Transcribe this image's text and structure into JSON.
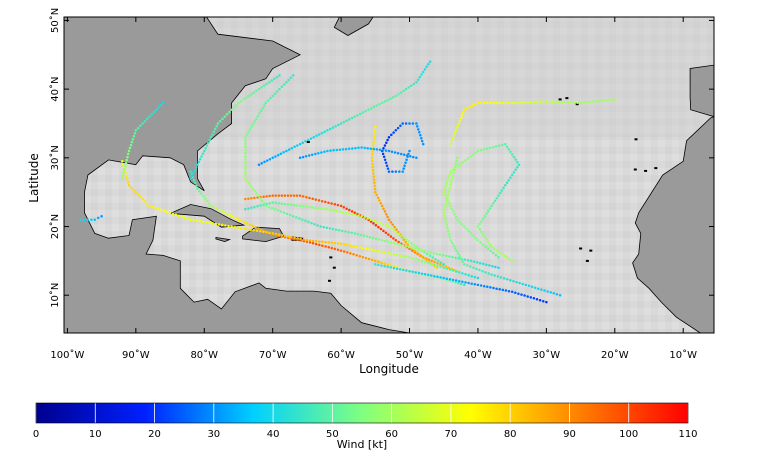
{
  "map": {
    "xlabel": "Longitude",
    "ylabel": "Latitude",
    "lon_ticks": [
      {
        "v": -100,
        "label": "100˚W"
      },
      {
        "v": -90,
        "label": "90˚W"
      },
      {
        "v": -80,
        "label": "80˚W"
      },
      {
        "v": -70,
        "label": "70˚W"
      },
      {
        "v": -60,
        "label": "60˚W"
      },
      {
        "v": -50,
        "label": "50˚W"
      },
      {
        "v": -40,
        "label": "40˚W"
      },
      {
        "v": -30,
        "label": "30˚W"
      },
      {
        "v": -20,
        "label": "20˚W"
      },
      {
        "v": -10,
        "label": "10˚W"
      }
    ],
    "lat_ticks": [
      {
        "v": 10,
        "label": "10˚N"
      },
      {
        "v": 20,
        "label": "20˚N"
      },
      {
        "v": 30,
        "label": "30˚N"
      },
      {
        "v": 40,
        "label": "40˚N"
      },
      {
        "v": 50,
        "label": "50˚N"
      }
    ],
    "lon_range": [
      -100.5,
      -5.5
    ],
    "lat_range": [
      4.5,
      50.5
    ],
    "background": "grayscale sea surface field",
    "land_color": "#9a9a9a",
    "coastline_color": "#000000"
  },
  "colorbar": {
    "label": "Wind [kt]",
    "range": [
      0,
      110
    ],
    "ticks": [
      {
        "v": 0,
        "label": "0"
      },
      {
        "v": 10,
        "label": "10"
      },
      {
        "v": 20,
        "label": "20"
      },
      {
        "v": 30,
        "label": "30"
      },
      {
        "v": 40,
        "label": "40"
      },
      {
        "v": 50,
        "label": "50"
      },
      {
        "v": 60,
        "label": "60"
      },
      {
        "v": 70,
        "label": "70"
      },
      {
        "v": 80,
        "label": "80"
      },
      {
        "v": 90,
        "label": "90"
      },
      {
        "v": 100,
        "label": "100"
      },
      {
        "v": 110,
        "label": "110"
      }
    ],
    "colormap": [
      "#00008f",
      "#0020ff",
      "#00d0ff",
      "#80ff80",
      "#ffff00",
      "#ff8000",
      "#ff0000"
    ]
  },
  "chart_data": {
    "type": "scatter",
    "xlabel": "Longitude",
    "ylabel": "Latitude",
    "xlim": [
      -100.5,
      -5.5
    ],
    "ylim": [
      4.5,
      50.5
    ],
    "color_variable": "Wind [kt]",
    "tracks": [
      {
        "points": [
          [
            -42,
            11.5
          ],
          [
            -45,
            12.4
          ],
          [
            -50,
            13.5
          ],
          [
            -55,
            15
          ],
          [
            -60,
            16.5
          ],
          [
            -65,
            17.8
          ],
          [
            -70,
            18.8
          ],
          [
            -75,
            21
          ],
          [
            -79,
            23
          ],
          [
            -81,
            25.5
          ],
          [
            -82,
            28
          ]
        ],
        "winds": [
          45,
          55,
          70,
          85,
          95,
          100,
          90,
          75,
          60,
          50,
          45
        ]
      },
      {
        "points": [
          [
            -43,
            13.5
          ],
          [
            -48,
            15.5
          ],
          [
            -52,
            18
          ],
          [
            -56,
            21
          ],
          [
            -60,
            23
          ],
          [
            -66,
            24.5
          ],
          [
            -70,
            24.5
          ],
          [
            -74,
            24
          ]
        ],
        "winds": [
          80,
          90,
          100,
          105,
          100,
          95,
          95,
          90
        ]
      },
      {
        "points": [
          [
            -46,
            14
          ],
          [
            -50,
            17
          ],
          [
            -53,
            21
          ],
          [
            -55,
            25
          ],
          [
            -55.5,
            30
          ],
          [
            -55,
            34.5
          ]
        ],
        "winds": [
          80,
          85,
          90,
          85,
          80,
          75
        ]
      },
      {
        "points": [
          [
            -45,
            14.5
          ],
          [
            -49,
            17
          ],
          [
            -53,
            20
          ],
          [
            -57,
            21.5
          ],
          [
            -62,
            22.5
          ],
          [
            -66,
            23
          ],
          [
            -70,
            23.5
          ],
          [
            -74,
            22.5
          ]
        ],
        "winds": [
          45,
          55,
          65,
          65,
          60,
          55,
          50,
          45
        ]
      },
      {
        "points": [
          [
            -40,
            12.5
          ],
          [
            -45,
            14
          ],
          [
            -50,
            15.5
          ],
          [
            -55,
            16.5
          ],
          [
            -60,
            17.5
          ],
          [
            -65,
            18
          ],
          [
            -70,
            19
          ],
          [
            -76,
            20
          ],
          [
            -82,
            21
          ],
          [
            -88,
            23
          ],
          [
            -91,
            26
          ],
          [
            -92,
            29.5
          ]
        ],
        "winds": [
          40,
          50,
          60,
          70,
          80,
          85,
          80,
          75,
          70,
          75,
          80,
          70
        ]
      },
      {
        "points": [
          [
            -37,
            14
          ],
          [
            -41,
            15
          ],
          [
            -46,
            16
          ],
          [
            -50,
            17
          ],
          [
            -54,
            18
          ],
          [
            -58,
            19
          ],
          [
            -63,
            20
          ],
          [
            -67,
            21.5
          ],
          [
            -71,
            23
          ],
          [
            -74,
            27
          ],
          [
            -74,
            33
          ],
          [
            -71,
            38
          ],
          [
            -67,
            42
          ]
        ],
        "winds": [
          40,
          45,
          55,
          60,
          55,
          50,
          45,
          50,
          55,
          60,
          55,
          50,
          45
        ]
      },
      {
        "points": [
          [
            -30,
            9
          ],
          [
            -35,
            10.5
          ],
          [
            -40,
            11.5
          ],
          [
            -45,
            12.5
          ],
          [
            -50,
            13.5
          ],
          [
            -55,
            14.5
          ]
        ],
        "winds": [
          20,
          25,
          30,
          35,
          40,
          45
        ]
      },
      {
        "points": [
          [
            -28,
            10
          ],
          [
            -33,
            11.5
          ],
          [
            -38,
            13
          ],
          [
            -42,
            14.5
          ],
          [
            -44,
            18
          ],
          [
            -45,
            22
          ],
          [
            -44,
            26
          ],
          [
            -43,
            30
          ]
        ],
        "winds": [
          35,
          40,
          45,
          50,
          55,
          60,
          60,
          55
        ]
      },
      {
        "points": [
          [
            -37,
            15.5
          ],
          [
            -40,
            18
          ],
          [
            -43,
            21
          ],
          [
            -45,
            25
          ],
          [
            -44,
            28
          ],
          [
            -40,
            31
          ],
          [
            -36,
            32
          ],
          [
            -34,
            29
          ],
          [
            -36,
            26
          ],
          [
            -38,
            23
          ],
          [
            -40,
            20
          ],
          [
            -38,
            17
          ],
          [
            -35,
            15
          ]
        ],
        "winds": [
          50,
          55,
          55,
          60,
          60,
          55,
          50,
          45,
          45,
          50,
          55,
          60,
          60
        ]
      },
      {
        "points": [
          [
            -44,
            32
          ],
          [
            -42,
            37
          ],
          [
            -40,
            38
          ],
          [
            -35,
            38
          ],
          [
            -30,
            38.2
          ],
          [
            -25,
            38
          ],
          [
            -20,
            38.5
          ]
        ],
        "winds": [
          65,
          75,
          75,
          70,
          65,
          60,
          60
        ]
      },
      {
        "points": [
          [
            -48,
            32
          ],
          [
            -49,
            35
          ],
          [
            -51,
            35
          ],
          [
            -53,
            33
          ],
          [
            -54,
            31
          ],
          [
            -53,
            28
          ],
          [
            -51,
            28
          ],
          [
            -50,
            31
          ]
        ],
        "winds": [
          30,
          30,
          25,
          20,
          20,
          25,
          30,
          30
        ]
      },
      {
        "points": [
          [
            -72,
            29
          ],
          [
            -68,
            31
          ],
          [
            -64,
            33
          ],
          [
            -60,
            35
          ],
          [
            -56,
            37
          ],
          [
            -52,
            39
          ],
          [
            -49,
            41
          ],
          [
            -47,
            44
          ]
        ],
        "winds": [
          30,
          35,
          40,
          45,
          50,
          50,
          45,
          40
        ]
      },
      {
        "points": [
          [
            -82,
            27
          ],
          [
            -80,
            31
          ],
          [
            -78,
            35
          ],
          [
            -75,
            38
          ],
          [
            -72,
            40
          ],
          [
            -69,
            42
          ]
        ],
        "winds": [
          40,
          45,
          50,
          55,
          50,
          45
        ]
      },
      {
        "points": [
          [
            -92,
            27
          ],
          [
            -91,
            31
          ],
          [
            -90,
            34
          ],
          [
            -88,
            36
          ],
          [
            -86,
            38
          ]
        ],
        "winds": [
          60,
          55,
          50,
          45,
          40
        ]
      },
      {
        "points": [
          [
            -98,
            21
          ],
          [
            -96,
            21
          ],
          [
            -95,
            21.5
          ]
        ],
        "winds": [
          40,
          35,
          30
        ]
      },
      {
        "points": [
          [
            -66,
            30
          ],
          [
            -62,
            31
          ],
          [
            -57,
            31.5
          ],
          [
            -53,
            31
          ],
          [
            -49,
            30
          ]
        ],
        "winds": [
          30,
          35,
          35,
          30,
          30
        ]
      }
    ]
  }
}
